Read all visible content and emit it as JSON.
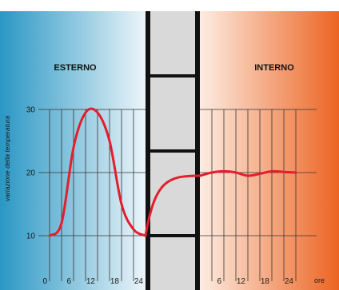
{
  "colors": {
    "outside_dark": "#2a97c4",
    "outside_light": "#eef6fa",
    "inside_light": "#fdeee4",
    "inside_dark": "#ec6422",
    "wall_fill": "#d9d9d9",
    "wall_stroke": "#111111",
    "curve": "#e31e2d",
    "grid": "#333333"
  },
  "labels": {
    "outside": "ESTERNO",
    "inside": "INTERNO",
    "y_axis": "variazione della temperatura",
    "unit": "ore"
  },
  "y_ticks": [
    "10",
    "20",
    "30"
  ],
  "x_ticks_left": [
    "0",
    "6",
    "12",
    "18",
    "24"
  ],
  "x_ticks_right": [
    "6",
    "12",
    "18",
    "24"
  ],
  "chart_data": {
    "type": "line",
    "ylabel": "variazione della temperatura",
    "ylim": [
      10,
      30
    ],
    "series": [
      {
        "region": "ESTERNO",
        "x": [
          0,
          3,
          6,
          9,
          12,
          15,
          18,
          21,
          24
        ],
        "y": [
          10,
          12,
          24,
          29.5,
          29.5,
          25,
          15,
          11,
          10
        ]
      },
      {
        "region": "INTERNO",
        "x": [
          0,
          3,
          6,
          9,
          12,
          15,
          18,
          21,
          24
        ],
        "y": [
          19.5,
          20,
          20.2,
          20,
          19.5,
          19.8,
          20.2,
          20.1,
          20
        ]
      }
    ]
  }
}
